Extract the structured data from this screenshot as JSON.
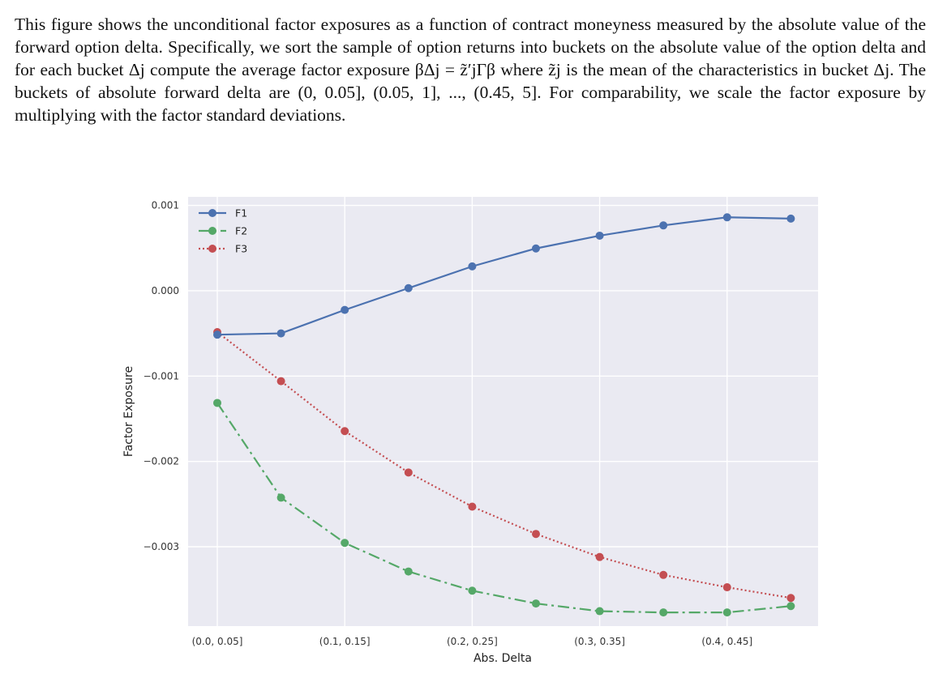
{
  "caption": {
    "text": "This figure shows the unconditional factor exposures as a function of contract moneyness measured by the absolute value of the forward option delta. Specifically, we sort the sample of option returns into buckets on the absolute value of the option delta and for each bucket Δj compute the average factor exposure βΔj = z̃′jΓβ where z̃j is the mean of the characteristics in bucket Δj. The buckets of absolute forward delta are (0, 0.05], (0.05, 1], ..., (0.45, 5]. For comparability, we scale the factor exposure by multiplying with the factor standard deviations."
  },
  "chart_data": {
    "type": "line",
    "xlabel": "Abs. Delta",
    "ylabel": "Factor Exposure",
    "categories": [
      "(0.0, 0.05]",
      "",
      "(0.1, 0.15]",
      "",
      "(0.2, 0.25]",
      "",
      "(0.3, 0.35]",
      "",
      "(0.4, 0.45]",
      ""
    ],
    "tick_labels_x": [
      "(0.0, 0.05]",
      "(0.1, 0.15]",
      "(0.2, 0.25]",
      "(0.3, 0.35]",
      "(0.4, 0.45]"
    ],
    "tick_labels_y": [
      "0.001",
      "0.000",
      "−0.001",
      "−0.002",
      "−0.003"
    ],
    "ylim": [
      -0.00393,
      0.0011
    ],
    "grid": true,
    "legend_position": "top-left",
    "series": [
      {
        "name": "F1",
        "color": "#4c72b0",
        "linestyle": "solid",
        "values": [
          -0.000515,
          -0.0005,
          -0.000225,
          3e-05,
          0.000285,
          0.000495,
          0.000645,
          0.000765,
          0.00086,
          0.000845
        ]
      },
      {
        "name": "F2",
        "color": "#55a868",
        "linestyle": "dashdot",
        "values": [
          -0.001315,
          -0.002425,
          -0.002955,
          -0.00329,
          -0.003515,
          -0.003665,
          -0.003755,
          -0.00377,
          -0.00377,
          -0.003695
        ]
      },
      {
        "name": "F3",
        "color": "#c44e52",
        "linestyle": "dotted",
        "values": [
          -0.000485,
          -0.00106,
          -0.001645,
          -0.00213,
          -0.00253,
          -0.00285,
          -0.00312,
          -0.00333,
          -0.003475,
          -0.0036
        ]
      }
    ]
  }
}
